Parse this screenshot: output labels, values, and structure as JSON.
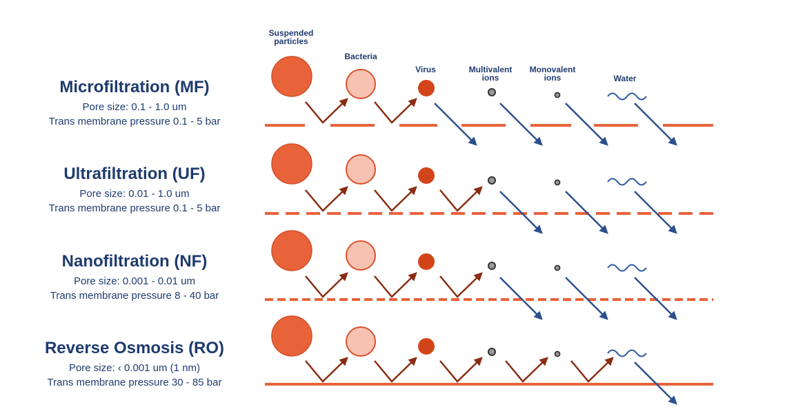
{
  "columns": [
    {
      "label_line1": "Suspended",
      "label_line2": "particles",
      "particle": "large-circle"
    },
    {
      "label_line1": "Bacteria",
      "label_line2": "",
      "particle": "medium-circle"
    },
    {
      "label_line1": "Virus",
      "label_line2": "",
      "particle": "small-circle"
    },
    {
      "label_line1": "Multivalent",
      "label_line2": "ions",
      "particle": "ion-dot"
    },
    {
      "label_line1": "Monovalent",
      "label_line2": "ions",
      "particle": "ion-dot-small"
    },
    {
      "label_line1": "Water",
      "label_line2": "",
      "particle": "wave"
    }
  ],
  "processes": [
    {
      "title": "Microfiltration (MF)",
      "pore_size": "Pore size: 0.1 - 1.0 um",
      "pressure": "Trans membrane pressure 0.1 - 5 bar",
      "membrane": "wide-gaps",
      "passes_from_column": 2
    },
    {
      "title": "Ultrafiltration (UF)",
      "pore_size": "Pore size: 0.01 - 1.0 um",
      "pressure": "Trans membrane pressure 0.1 - 5 bar",
      "membrane": "dashed",
      "passes_from_column": 3
    },
    {
      "title": "Nanofiltration (NF)",
      "pore_size": "Pore size: 0.001 - 0.01 um",
      "pressure": "Trans membrane pressure 8 - 40 bar",
      "membrane": "fine-dashed",
      "passes_from_column": 3
    },
    {
      "title": "Reverse Osmosis (RO)",
      "pore_size": "Pore size: ‹ 0.001 um (1 nm)",
      "pressure": "Trans membrane pressure 30 - 85 bar",
      "membrane": "solid",
      "passes_from_column": 5
    }
  ],
  "colors": {
    "text": "#1f3b6e",
    "membrane": "#e8623a",
    "particle_large": "#e8623a",
    "particle_bacteria_fill": "#f8c2b2",
    "particle_bacteria_stroke": "#d9532c",
    "particle_virus": "#d2441a",
    "ion_fill": "#9a9a9a",
    "ion_stroke": "#333333",
    "reject_arrow": "#8a2d12",
    "pass_arrow": "#2c4f8e",
    "water": "#2c5aa0"
  }
}
